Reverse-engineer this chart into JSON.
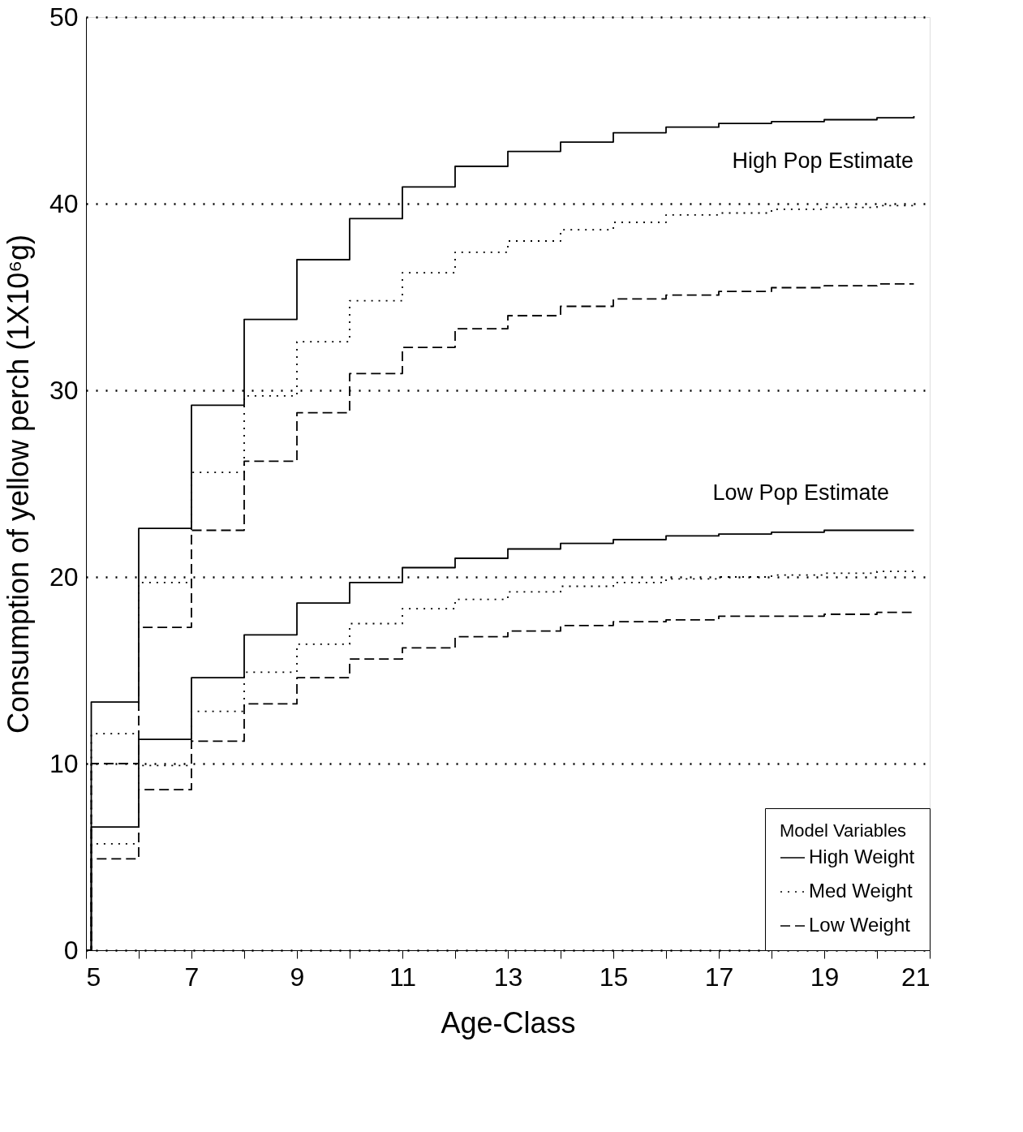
{
  "chart_data": {
    "type": "step",
    "xlabel": "Age-Class",
    "ylabel": "Consumption of yellow perch (1X10⁶g)",
    "legend_title": "Model Variables",
    "legend": "bottom right",
    "grid": "y",
    "xlim": [
      5,
      21
    ],
    "ylim": [
      0,
      50
    ],
    "xticks": [
      5,
      {
        "value": 6,
        "label": null
      },
      7,
      {
        "value": 8,
        "label": null
      },
      9,
      {
        "value": 10,
        "label": null
      },
      11,
      {
        "value": 12,
        "label": null
      },
      13,
      {
        "value": 14,
        "label": null
      },
      15,
      {
        "value": 16,
        "label": null
      },
      17,
      {
        "value": 18,
        "label": null
      },
      19,
      {
        "value": 20,
        "label": null
      },
      21
    ],
    "yticks": [
      0,
      10,
      20,
      30,
      40,
      50
    ],
    "x": [
      5,
      5.1,
      6,
      7,
      8,
      9,
      10,
      11,
      12,
      13,
      14,
      15,
      16,
      17,
      18,
      19,
      20,
      20.7
    ],
    "series": [
      {
        "name": "High Weight",
        "color": "#000000",
        "line_style": "solid",
        "values": [
          0,
          13.3,
          22.6,
          29.2,
          33.8,
          37.0,
          39.2,
          40.9,
          42.0,
          42.8,
          43.3,
          43.8,
          44.1,
          44.3,
          44.4,
          44.5,
          44.6,
          44.7
        ]
      },
      {
        "name": "Med Weight",
        "color": "#000000",
        "line_style": "dotted",
        "values": [
          0,
          11.6,
          19.7,
          25.6,
          29.7,
          32.6,
          34.8,
          36.3,
          37.4,
          38.0,
          38.6,
          39.0,
          39.4,
          39.5,
          39.7,
          39.8,
          39.9,
          39.9
        ]
      },
      {
        "name": "Low Weight",
        "color": "#000000",
        "line_style": "dashed",
        "values": [
          0,
          10.0,
          17.3,
          22.5,
          26.2,
          28.8,
          30.9,
          32.3,
          33.3,
          34.0,
          34.5,
          34.9,
          35.1,
          35.3,
          35.5,
          35.6,
          35.7,
          35.7
        ]
      },
      {
        "color": "#000000",
        "line_style": "solid",
        "values": [
          0,
          6.6,
          11.3,
          14.6,
          16.9,
          18.6,
          19.7,
          20.5,
          21.0,
          21.5,
          21.8,
          22.0,
          22.2,
          22.3,
          22.4,
          22.5,
          22.5,
          22.5
        ]
      },
      {
        "color": "#000000",
        "line_style": "dotted",
        "values": [
          0,
          5.7,
          9.9,
          12.8,
          14.9,
          16.4,
          17.5,
          18.3,
          18.8,
          19.2,
          19.5,
          19.7,
          19.9,
          20.0,
          20.1,
          20.2,
          20.3,
          20.3
        ]
      },
      {
        "color": "#000000",
        "line_style": "dashed",
        "values": [
          0,
          4.9,
          8.6,
          11.2,
          13.2,
          14.6,
          15.6,
          16.2,
          16.8,
          17.1,
          17.4,
          17.6,
          17.7,
          17.9,
          17.9,
          18.0,
          18.1,
          18.1
        ]
      }
    ],
    "annotations": [
      "High Pop Estimate",
      "Low Pop Estimate"
    ]
  }
}
